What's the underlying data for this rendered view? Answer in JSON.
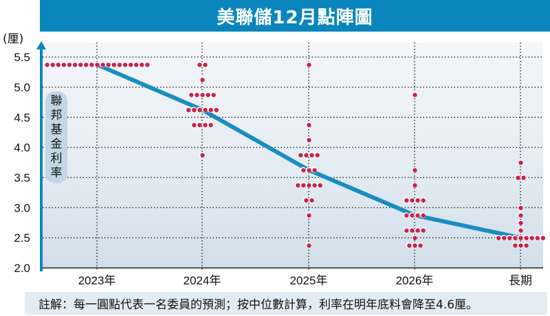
{
  "header": {
    "title": "美聯儲12月點陣圖"
  },
  "axis": {
    "unit": "(厘)",
    "ylabel_chars": [
      "聯",
      "邦",
      "基",
      "金",
      "利",
      "率"
    ]
  },
  "footnote": "註解：每一圓點代表一名委員的預測；按中位數計算，利率在明年底料會降至4.6厘。",
  "colors": {
    "title_bg": "#0b86bd",
    "axis": "#0b86bd",
    "median_line": "#1a8dc0",
    "dot": "#c8244a",
    "grid": "#222222"
  },
  "chart_data": {
    "type": "scatter",
    "title": "美聯儲12月點陣圖",
    "xlabel": "",
    "ylabel": "聯邦基金利率 (厘)",
    "categories": [
      "2023年",
      "2024年",
      "2025年",
      "2026年",
      "長期"
    ],
    "yticks": [
      2.0,
      2.5,
      3.0,
      3.5,
      4.0,
      4.5,
      5.0,
      5.5
    ],
    "ylim": [
      2.0,
      5.6
    ],
    "grid": true,
    "dots": [
      {
        "category": "2023年",
        "points": [
          {
            "rate": 5.375,
            "count": 19
          }
        ]
      },
      {
        "category": "2024年",
        "points": [
          {
            "rate": 5.375,
            "count": 2
          },
          {
            "rate": 5.125,
            "count": 1
          },
          {
            "rate": 4.875,
            "count": 5
          },
          {
            "rate": 4.625,
            "count": 6
          },
          {
            "rate": 4.375,
            "count": 4
          },
          {
            "rate": 3.875,
            "count": 1
          }
        ]
      },
      {
        "category": "2025年",
        "points": [
          {
            "rate": 5.375,
            "count": 1
          },
          {
            "rate": 4.375,
            "count": 1
          },
          {
            "rate": 4.125,
            "count": 1
          },
          {
            "rate": 3.875,
            "count": 4
          },
          {
            "rate": 3.625,
            "count": 3
          },
          {
            "rate": 3.375,
            "count": 5
          },
          {
            "rate": 3.125,
            "count": 2
          },
          {
            "rate": 2.875,
            "count": 1
          },
          {
            "rate": 2.375,
            "count": 1
          }
        ]
      },
      {
        "category": "2026年",
        "points": [
          {
            "rate": 4.875,
            "count": 1
          },
          {
            "rate": 3.625,
            "count": 1
          },
          {
            "rate": 3.375,
            "count": 1
          },
          {
            "rate": 3.125,
            "count": 4
          },
          {
            "rate": 2.875,
            "count": 4
          },
          {
            "rate": 2.625,
            "count": 4
          },
          {
            "rate": 2.5,
            "count": 1
          },
          {
            "rate": 2.375,
            "count": 3
          }
        ]
      },
      {
        "category": "長期",
        "points": [
          {
            "rate": 3.75,
            "count": 1
          },
          {
            "rate": 3.5,
            "count": 2
          },
          {
            "rate": 3.0,
            "count": 1
          },
          {
            "rate": 2.875,
            "count": 1
          },
          {
            "rate": 2.75,
            "count": 1
          },
          {
            "rate": 2.625,
            "count": 1
          },
          {
            "rate": 2.5,
            "count": 9
          },
          {
            "rate": 2.375,
            "count": 3
          }
        ]
      }
    ],
    "series": [
      {
        "name": "中位數",
        "values": [
          5.375,
          4.625,
          3.625,
          2.875,
          2.5
        ]
      }
    ]
  }
}
